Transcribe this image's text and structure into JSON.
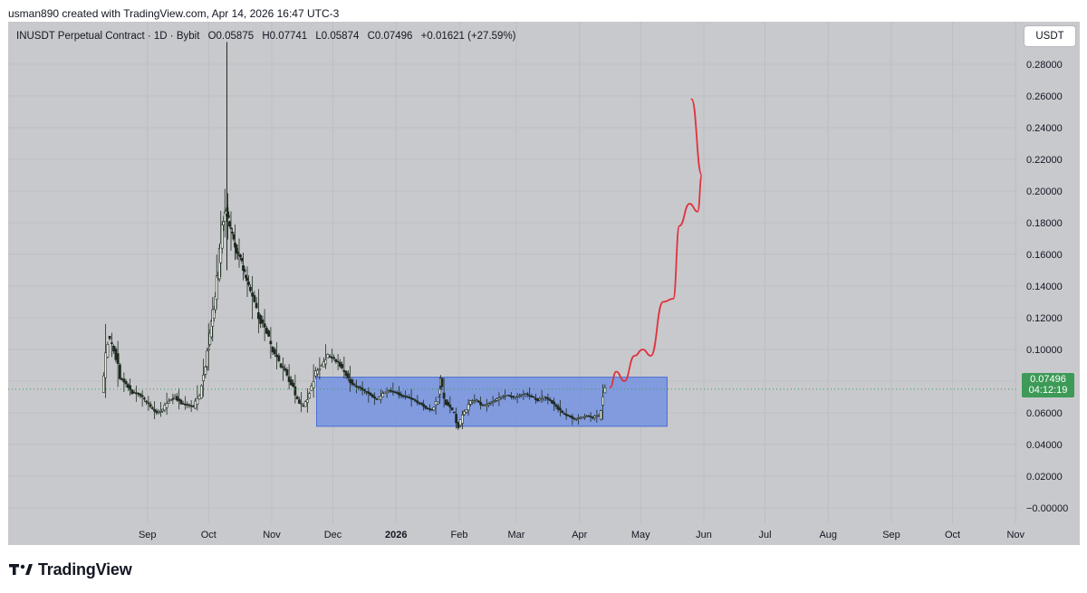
{
  "header": {
    "caption": "usman890 created with TradingView.com, Apr 14, 2026 16:47 UTC-3"
  },
  "legend": {
    "symbol": "INUSDT Perpetual Contract · 1D · Bybit",
    "open": "O0.05875",
    "high": "H0.07741",
    "low": "L0.05874",
    "close": "C0.07496",
    "change": "+0.01621 (+27.59%)"
  },
  "currency": "USDT",
  "last_price": {
    "value": "0.07496",
    "countdown": "04:12:19"
  },
  "footer": {
    "brand": "TradingView"
  },
  "colors": {
    "background": "#c8c9cd",
    "candle": "#1f2a20",
    "candle_up_fill": "#f0f3ee",
    "rectangle_fill": "#6d8ee3",
    "projection": "#e0323c",
    "price_tag": "#3d9a57",
    "price_line": "#3a9a56"
  },
  "chart_data": {
    "type": "line",
    "title": "INUSDT Perpetual Contract · 1D · Bybit",
    "xlabel": "",
    "ylabel": "",
    "x_tick_labels": [
      "Sep",
      "Oct",
      "Nov",
      "Dec",
      "2026",
      "Feb",
      "Mar",
      "Apr",
      "May",
      "Jun",
      "Jul",
      "Aug",
      "Sep",
      "Oct",
      "Nov"
    ],
    "y_tick_labels": [
      "0.28000",
      "0.26000",
      "0.24000",
      "0.22000",
      "0.20000",
      "0.18000",
      "0.16000",
      "0.14000",
      "0.12000",
      "0.10000",
      "0.08000",
      "0.06000",
      "0.04000",
      "0.02000",
      "−0.00000"
    ],
    "y_ticks": [
      0.28,
      0.26,
      0.24,
      0.22,
      0.2,
      0.18,
      0.16,
      0.14,
      0.12,
      0.1,
      0.08,
      0.06,
      0.04,
      0.02,
      0.0
    ],
    "ylim": [
      -0.01,
      0.294
    ],
    "grid": true,
    "series": [
      {
        "kind": "close",
        "x": [
          "2025-08-10",
          "2025-08-13",
          "2025-08-16",
          "2025-08-19",
          "2025-08-22",
          "2025-08-25",
          "2025-08-28",
          "2025-08-31",
          "2025-09-03",
          "2025-09-06",
          "2025-09-09",
          "2025-09-12",
          "2025-09-15",
          "2025-09-18",
          "2025-09-21",
          "2025-09-24",
          "2025-09-27",
          "2025-09-30",
          "2025-10-02",
          "2025-10-04",
          "2025-10-06",
          "2025-10-08",
          "2025-10-10",
          "2025-10-11",
          "2025-10-13",
          "2025-10-15",
          "2025-10-17",
          "2025-10-19",
          "2025-10-21",
          "2025-10-24",
          "2025-10-27",
          "2025-10-30",
          "2025-11-02",
          "2025-11-05",
          "2025-11-08",
          "2025-11-11",
          "2025-11-14",
          "2025-11-17",
          "2025-11-20",
          "2025-11-23",
          "2025-11-26",
          "2025-11-29",
          "2025-12-02",
          "2025-12-05",
          "2025-12-08",
          "2025-12-11",
          "2025-12-14",
          "2025-12-17",
          "2025-12-20",
          "2025-12-23",
          "2025-12-26",
          "2025-12-29",
          "2026-01-01",
          "2026-01-04",
          "2026-01-07",
          "2026-01-10",
          "2026-01-13",
          "2026-01-16",
          "2026-01-19",
          "2026-01-22",
          "2026-01-23",
          "2026-01-26",
          "2026-01-29",
          "2026-02-01",
          "2026-02-04",
          "2026-02-07",
          "2026-02-10",
          "2026-02-13",
          "2026-02-16",
          "2026-02-19",
          "2026-02-22",
          "2026-02-25",
          "2026-02-28",
          "2026-03-03",
          "2026-03-06",
          "2026-03-09",
          "2026-03-12",
          "2026-03-15",
          "2026-03-18",
          "2026-03-21",
          "2026-03-24",
          "2026-03-27",
          "2026-03-30",
          "2026-04-02",
          "2026-04-05",
          "2026-04-08",
          "2026-04-11",
          "2026-04-14"
        ],
        "y": [
          0.072,
          0.108,
          0.1,
          0.082,
          0.078,
          0.073,
          0.072,
          0.068,
          0.064,
          0.06,
          0.062,
          0.068,
          0.07,
          0.066,
          0.065,
          0.064,
          0.072,
          0.09,
          0.11,
          0.128,
          0.15,
          0.178,
          0.19,
          0.182,
          0.172,
          0.162,
          0.158,
          0.148,
          0.14,
          0.128,
          0.118,
          0.11,
          0.1,
          0.092,
          0.086,
          0.078,
          0.068,
          0.064,
          0.072,
          0.085,
          0.09,
          0.096,
          0.094,
          0.09,
          0.084,
          0.078,
          0.076,
          0.074,
          0.071,
          0.068,
          0.072,
          0.074,
          0.073,
          0.071,
          0.07,
          0.068,
          0.066,
          0.063,
          0.062,
          0.068,
          0.08,
          0.066,
          0.062,
          0.052,
          0.06,
          0.067,
          0.068,
          0.064,
          0.066,
          0.068,
          0.07,
          0.071,
          0.07,
          0.071,
          0.072,
          0.07,
          0.068,
          0.07,
          0.068,
          0.064,
          0.06,
          0.058,
          0.056,
          0.057,
          0.058,
          0.057,
          0.059,
          0.07496
        ]
      },
      {
        "kind": "projection",
        "x": [
          "2026-04-16",
          "2026-04-19",
          "2026-04-23",
          "2026-04-28",
          "2026-05-02",
          "2026-05-06",
          "2026-05-12",
          "2026-05-17",
          "2026-05-20",
          "2026-05-25",
          "2026-05-29",
          "2026-05-31",
          "2026-05-26"
        ],
        "y": [
          0.076,
          0.086,
          0.08,
          0.096,
          0.1,
          0.096,
          0.13,
          0.132,
          0.178,
          0.192,
          0.187,
          0.21,
          0.258
        ]
      }
    ],
    "range_box": {
      "x_start": "2025-11-23",
      "x_end": "2026-05-14",
      "y_low": 0.0515,
      "y_high": 0.0825
    }
  }
}
